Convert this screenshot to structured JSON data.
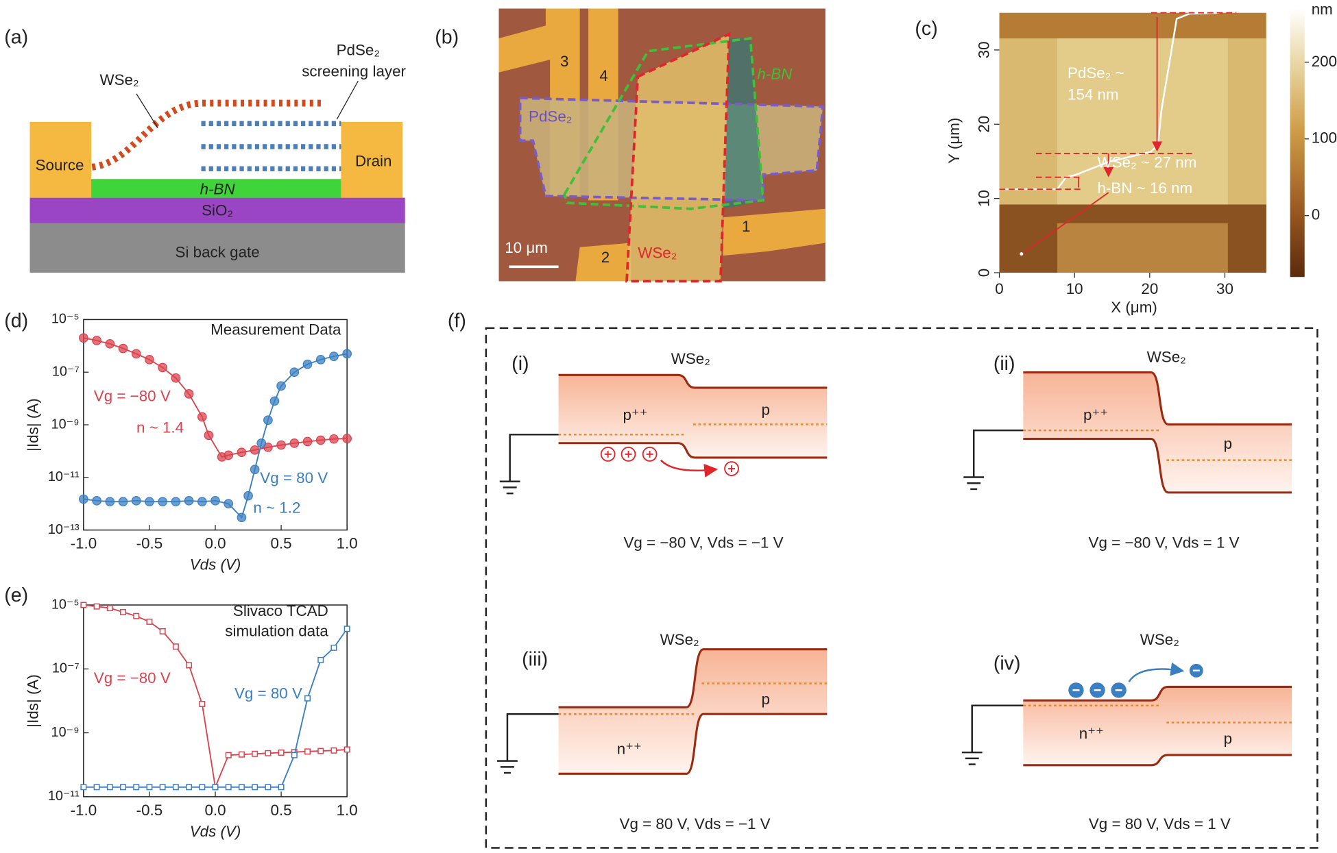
{
  "panels": {
    "a": {
      "label": "(a)",
      "wse2": "WSe₂",
      "pdse2": "PdSe₂",
      "screening": "screening layer",
      "source": "Source",
      "drain": "Drain",
      "hbn": "h-BN",
      "sio2": "SiO₂",
      "si": "Si back gate"
    },
    "b": {
      "label": "(b)",
      "e3": "3",
      "e4": "4",
      "e1": "1",
      "e2": "2",
      "pdse2": "PdSe₂",
      "hbn": "h-BN",
      "wse2": "WSe₂",
      "scale": "10 μm"
    },
    "c": {
      "label": "(c)",
      "xlabel": "X (μm)",
      "ylabel": "Y (μm)",
      "xlim": [
        0,
        35.5
      ],
      "ylim": [
        0,
        35
      ],
      "xticks": [
        0,
        10,
        20,
        30
      ],
      "yticks": [
        0,
        10,
        20,
        30
      ],
      "colorbar": {
        "label": "nm",
        "lim": [
          -80,
          270
        ],
        "ticks": [
          0,
          100,
          200
        ]
      },
      "annotations": [
        "PdSe₂ ~",
        "154 nm",
        "WSe₂ ~ 27 nm",
        "h-BN ~ 16 nm"
      ]
    },
    "d": {
      "label": "(d)"
    },
    "e": {
      "label": "(e)"
    },
    "f": {
      "label": "(f)",
      "subpanels": [
        {
          "label": "(i)",
          "material": "WSe₂",
          "left": "p⁺⁺",
          "right": "p",
          "caption": "Vg = −80 V, Vds = −1 V"
        },
        {
          "label": "(ii)",
          "material": "WSe₂",
          "left": "p⁺⁺",
          "right": "p",
          "caption": "Vg = −80 V, Vds = 1 V"
        },
        {
          "label": "(iii)",
          "material": "WSe₂",
          "left": "n⁺⁺",
          "right": "p",
          "caption": "Vg = 80 V, Vds = −1 V"
        },
        {
          "label": "(iv)",
          "material": "WSe₂",
          "left": "n⁺⁺",
          "right": "p",
          "caption": "Vg = 80 V, Vds = 1 V"
        }
      ]
    }
  },
  "chart_data": [
    {
      "type": "scatter",
      "log_y": true,
      "xlabel": "Vds (V)",
      "ylabel": "|Ids| (A)",
      "annotations": [
        "Measurement Data",
        "Vg = −80 V",
        "n ~ 1.4",
        "Vg = 80 V",
        "n ~ 1.2"
      ],
      "xlim": [
        -1,
        1
      ],
      "xticks": [
        {
          "value": -1,
          "label": "-1.0"
        },
        -0.5,
        {
          "value": 0,
          "label": "0.0"
        },
        0.5,
        {
          "value": 1,
          "label": "1.0"
        }
      ],
      "ylim": [
        1e-13,
        1e-05
      ],
      "yticks": [
        {
          "value": 1e-13,
          "label": "10⁻¹³"
        },
        {
          "value": 1e-11,
          "label": "10⁻¹¹"
        },
        {
          "value": 1e-09,
          "label": "10⁻⁹"
        },
        {
          "value": 1e-07,
          "label": "10⁻⁷"
        },
        {
          "value": 1e-05,
          "label": "10⁻⁵"
        }
      ],
      "series": [
        {
          "name": "Vg = −80 V",
          "color": "#d9434e",
          "x": [
            -1,
            -0.9,
            -0.8,
            -0.7,
            -0.6,
            -0.5,
            -0.4,
            -0.3,
            -0.2,
            -0.1,
            -0.05,
            0.05,
            0.1,
            0.2,
            0.3,
            0.4,
            0.5,
            0.6,
            0.7,
            0.8,
            0.9,
            1
          ],
          "values": [
            2e-06,
            1.6e-06,
            1.2e-06,
            8e-07,
            5e-07,
            3e-07,
            1.5e-07,
            6e-08,
            1.5e-08,
            2e-09,
            4e-10,
            6e-11,
            7e-11,
            9e-11,
            1.1e-10,
            1.4e-10,
            1.7e-10,
            2e-10,
            2.3e-10,
            2.6e-10,
            2.9e-10,
            3e-10
          ]
        },
        {
          "name": "Vg = 80 V",
          "color": "#3a7fc1",
          "x": [
            -1,
            -0.9,
            -0.8,
            -0.7,
            -0.6,
            -0.5,
            -0.4,
            -0.3,
            -0.2,
            -0.1,
            0,
            0.1,
            0.2,
            0.25,
            0.3,
            0.35,
            0.4,
            0.45,
            0.5,
            0.6,
            0.7,
            0.8,
            0.9,
            1
          ],
          "values": [
            1.5e-12,
            1.3e-12,
            1.2e-12,
            1.2e-12,
            1.3e-12,
            1.2e-12,
            1.2e-12,
            1.2e-12,
            1.3e-12,
            1.2e-12,
            1.3e-12,
            1e-12,
            3e-13,
            2e-12,
            2e-11,
            2e-10,
            1.5e-09,
            8e-09,
            3e-08,
            1e-07,
            2e-07,
            3e-07,
            4e-07,
            5e-07
          ]
        }
      ]
    },
    {
      "type": "line",
      "log_y": true,
      "xlabel": "Vds (V)",
      "ylabel": "|Ids| (A)",
      "annotations": [
        "Slivaco TCAD",
        "simulation data",
        "Vg = −80 V",
        "Vg = 80 V"
      ],
      "xlim": [
        -1,
        1
      ],
      "xticks": [
        {
          "value": -1,
          "label": "-1.0"
        },
        -0.5,
        {
          "value": 0,
          "label": "0.0"
        },
        0.5,
        {
          "value": 1,
          "label": "1.0"
        }
      ],
      "ylim": [
        1e-11,
        1e-05
      ],
      "yticks": [
        {
          "value": 1e-11,
          "label": "10⁻¹¹"
        },
        {
          "value": 1e-09,
          "label": "10⁻⁹"
        },
        {
          "value": 1e-07,
          "label": "10⁻⁷"
        },
        {
          "value": 1e-05,
          "label": "10⁻⁵"
        }
      ],
      "series": [
        {
          "name": "Vg = −80 V",
          "color": "#d9434e",
          "x": [
            -1,
            -0.9,
            -0.8,
            -0.7,
            -0.6,
            -0.5,
            -0.4,
            -0.3,
            -0.2,
            -0.1,
            0,
            0.1,
            0.2,
            0.3,
            0.4,
            0.5,
            0.6,
            0.7,
            0.8,
            0.9,
            1
          ],
          "values": [
            1e-05,
            9e-06,
            8e-06,
            6e-06,
            4.5e-06,
            3e-06,
            1.5e-06,
            5e-07,
            1.3e-07,
            8e-09,
            2e-11,
            2e-10,
            2.1e-10,
            2.2e-10,
            2.3e-10,
            2.4e-10,
            2.5e-10,
            2.6e-10,
            2.7e-10,
            2.8e-10,
            3e-10
          ]
        },
        {
          "name": "Vg = 80 V",
          "color": "#3a7fc1",
          "x": [
            -1,
            -0.9,
            -0.8,
            -0.7,
            -0.6,
            -0.5,
            -0.4,
            -0.3,
            -0.2,
            -0.1,
            0,
            0.1,
            0.2,
            0.3,
            0.4,
            0.5,
            0.6,
            0.7,
            0.8,
            0.9,
            1
          ],
          "values": [
            2e-11,
            2e-11,
            2e-11,
            2e-11,
            2e-11,
            2e-11,
            2e-11,
            2e-11,
            2e-11,
            2e-11,
            2e-11,
            2e-11,
            2e-11,
            2e-11,
            2e-11,
            2e-11,
            2e-10,
            1.2e-08,
            1.9e-07,
            4.6e-07,
            1.8e-06
          ]
        }
      ]
    }
  ]
}
